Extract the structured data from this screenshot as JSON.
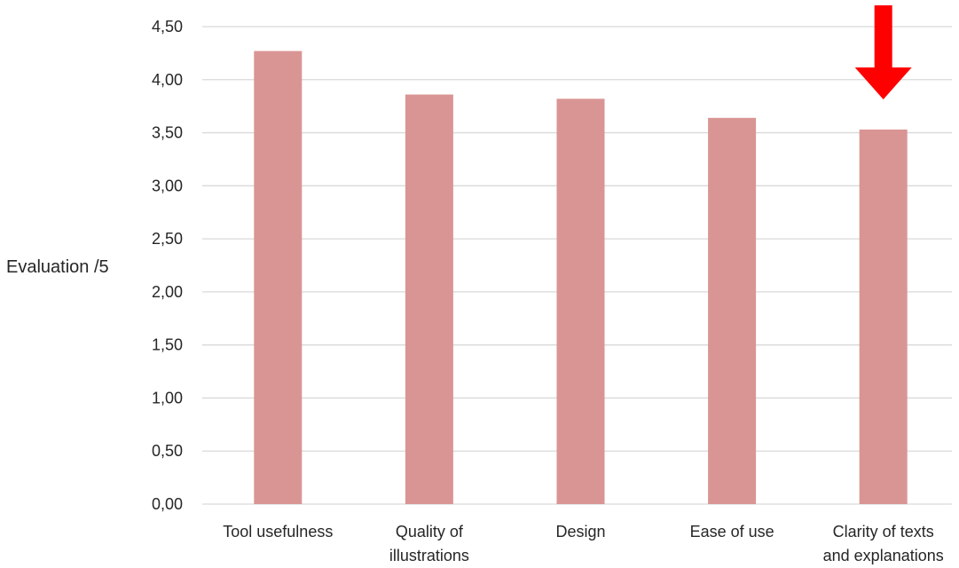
{
  "chart_data": {
    "type": "bar",
    "categories": [
      [
        "Tool usefulness"
      ],
      [
        "Quality of",
        "illustrations"
      ],
      [
        "Design"
      ],
      [
        "Ease of use"
      ],
      [
        "Clarity of texts",
        "and explanations"
      ]
    ],
    "values": [
      4.27,
      3.86,
      3.82,
      3.64,
      3.53
    ],
    "ylabel": "Evaluation /5",
    "ylim": [
      0,
      4.5
    ],
    "yticks": [
      "0,00",
      "0,50",
      "1,00",
      "1,50",
      "2,00",
      "2,50",
      "3,00",
      "3,50",
      "4,00",
      "4,50"
    ],
    "grid": true,
    "legend": "none",
    "bar_color": "#d99594",
    "grid_color": "#d9d9d9",
    "highlight": {
      "category_index": 4,
      "marker": "down-arrow",
      "color": "#ff0000"
    }
  }
}
